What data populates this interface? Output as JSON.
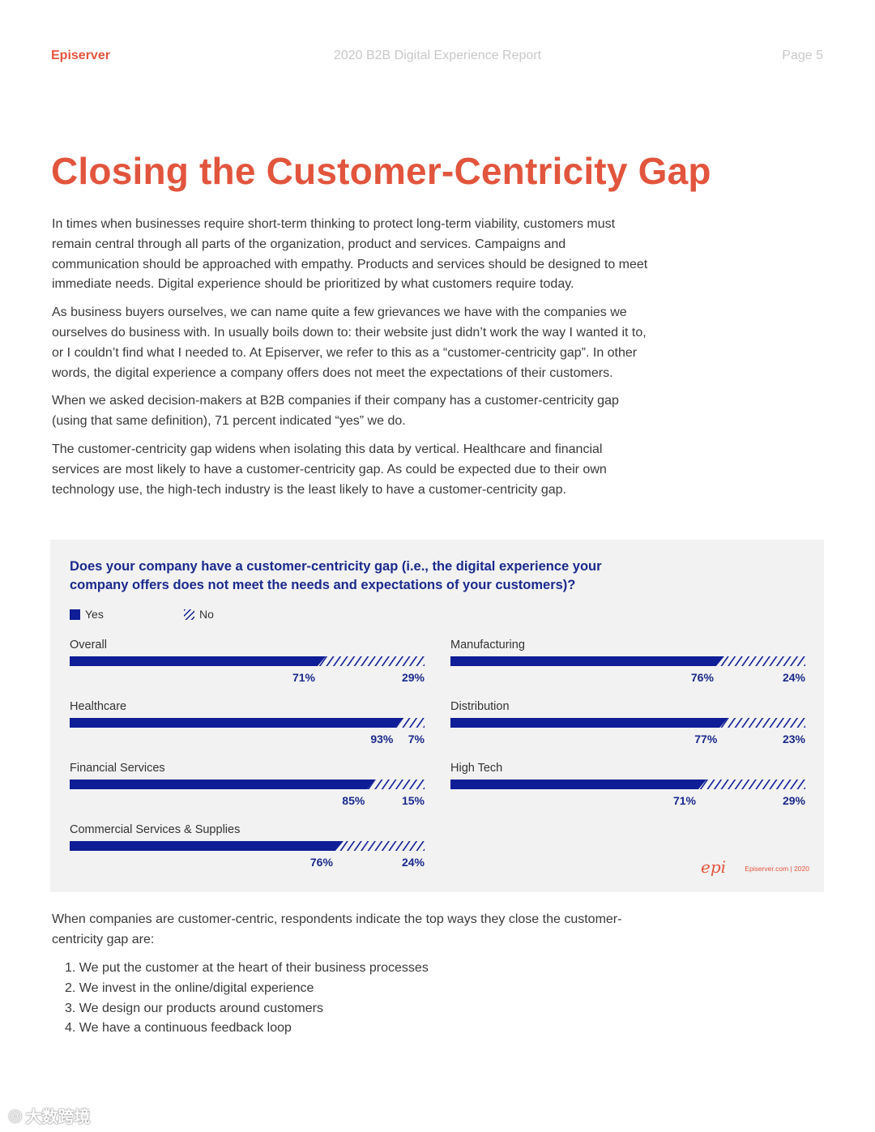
{
  "header": {
    "brand": "Episerver",
    "report_title": "2020 B2B Digital Experience Report",
    "page": "Page 5"
  },
  "title": "Closing the Customer-Centricity Gap",
  "paragraphs": [
    "In times when businesses require short-term thinking to protect long-term viability, customers must remain central through all parts of the organization, product and services. Campaigns and communication should be approached with empathy. Products and services should be designed to meet immediate needs. Digital experience should be prioritized by what customers require today.",
    "As business buyers ourselves, we can name quite a few grievances we have with the companies we ourselves do business with. In usually boils down to: their website just didn’t work the way I wanted it to, or I couldn’t find what I needed to. At Episerver, we refer to this as a “customer-centricity gap”. In other words, the digital experience a company offers does not meet the expectations of their customers.",
    "When we asked decision-makers at B2B companies if their company has a customer-centricity gap (using that same definition), 71 percent indicated “yes” we do.",
    "The customer-centricity gap widens when isolating this data by vertical. Healthcare and financial services are most likely to have a customer-centricity gap. As could be expected due to their own technology use, the high-tech industry is the least likely to have a customer-centricity gap."
  ],
  "chart_data": {
    "type": "bar",
    "title": "Does your company have a customer-centricity gap (i.e., the digital experience your company offers does not meet the needs and expectations of your customers)?",
    "legend": [
      "Yes",
      "No"
    ],
    "legend_placement": "top-left",
    "categories": [
      "Overall",
      "Healthcare",
      "Financial Services",
      "Commercial Services & Supplies",
      "Manufacturing",
      "Distribution",
      "High Tech"
    ],
    "series": [
      {
        "name": "Yes",
        "values": [
          71,
          93,
          85,
          76,
          76,
          77,
          71
        ],
        "labels": [
          "71%",
          "93%",
          "85%",
          "76%",
          "76%",
          "77%",
          "71%"
        ]
      },
      {
        "name": "No",
        "values": [
          29,
          7,
          15,
          24,
          24,
          23,
          29
        ],
        "labels": [
          "29%",
          "7%",
          "15%",
          "24%",
          "24%",
          "23%",
          "29%"
        ]
      }
    ],
    "stacked": true,
    "ylim": [
      0,
      100
    ],
    "colors": {
      "yes": "#0f1d96",
      "no_hatch": "#0f1d96"
    }
  },
  "chart_footer": {
    "logo_text": "epi",
    "site": "Episerver.com  |  2020"
  },
  "after_chart_text": "When companies are customer-centric, respondents indicate the top ways they close the customer-centricity gap are:",
  "list_items": [
    "1. We put the customer at the heart of their business processes",
    "2. We invest in the online/digital experience",
    "3. We design our products around customers",
    "4. We have a continuous feedback loop"
  ],
  "watermark": "大数跨境",
  "colors": {
    "accent": "#e2553d",
    "navy": "#1b2a8c"
  }
}
